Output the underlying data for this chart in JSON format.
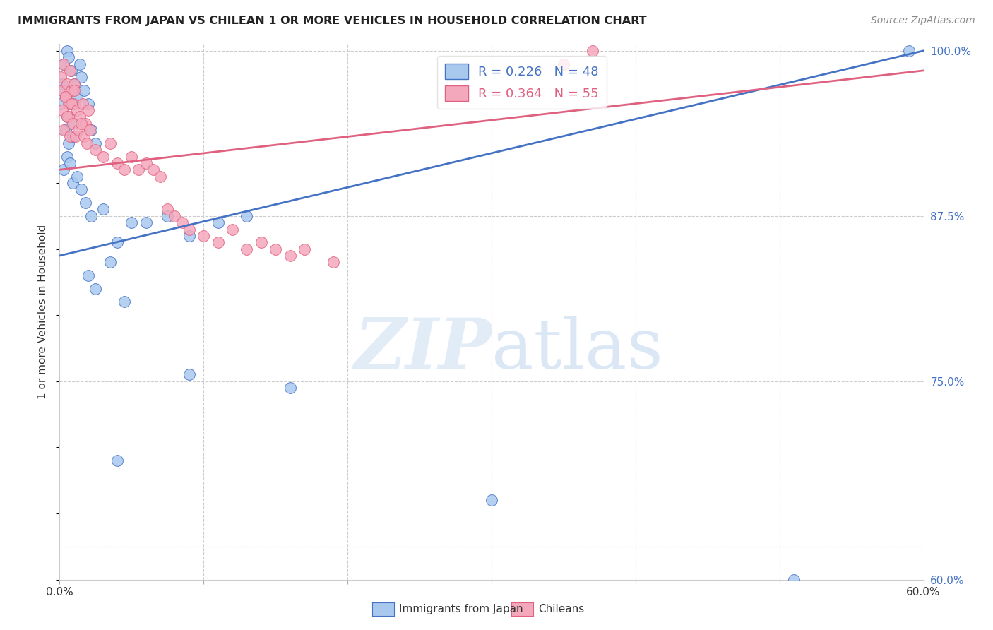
{
  "title": "IMMIGRANTS FROM JAPAN VS CHILEAN 1 OR MORE VEHICLES IN HOUSEHOLD CORRELATION CHART",
  "source": "Source: ZipAtlas.com",
  "ylabel": "1 or more Vehicles in Household",
  "legend_japan": "Immigrants from Japan",
  "legend_chile": "Chileans",
  "R_japan": 0.226,
  "N_japan": 48,
  "R_chile": 0.364,
  "N_chile": 55,
  "xlim": [
    0.0,
    0.6
  ],
  "ylim": [
    0.6,
    1.005
  ],
  "color_japan": "#A8C8EE",
  "color_chile": "#F4A8BC",
  "line_color_japan": "#4472C4",
  "line_color_chile": "#E06080",
  "background": "#FFFFFF",
  "japan_x": [
    0.001,
    0.002,
    0.003,
    0.004,
    0.005,
    0.006,
    0.007,
    0.008,
    0.009,
    0.01,
    0.003,
    0.005,
    0.006,
    0.008,
    0.01,
    0.012,
    0.014,
    0.015,
    0.017,
    0.02,
    0.022,
    0.025,
    0.003,
    0.005,
    0.007,
    0.009,
    0.012,
    0.015,
    0.018,
    0.022,
    0.03,
    0.04,
    0.05,
    0.06,
    0.075,
    0.09,
    0.11,
    0.13,
    0.02,
    0.025,
    0.035,
    0.045,
    0.09,
    0.16,
    0.59,
    0.04,
    0.3,
    0.51
  ],
  "japan_y": [
    0.96,
    0.975,
    0.97,
    0.94,
    0.95,
    0.93,
    0.96,
    0.945,
    0.935,
    0.96,
    0.99,
    1.0,
    0.995,
    0.985,
    0.975,
    0.965,
    0.99,
    0.98,
    0.97,
    0.96,
    0.94,
    0.93,
    0.91,
    0.92,
    0.915,
    0.9,
    0.905,
    0.895,
    0.885,
    0.875,
    0.88,
    0.855,
    0.87,
    0.87,
    0.875,
    0.86,
    0.87,
    0.875,
    0.83,
    0.82,
    0.84,
    0.81,
    0.755,
    0.745,
    1.0,
    0.69,
    0.66,
    0.6
  ],
  "chile_x": [
    0.001,
    0.002,
    0.003,
    0.004,
    0.005,
    0.006,
    0.007,
    0.008,
    0.009,
    0.01,
    0.002,
    0.004,
    0.006,
    0.008,
    0.01,
    0.012,
    0.014,
    0.016,
    0.018,
    0.02,
    0.003,
    0.005,
    0.007,
    0.009,
    0.011,
    0.013,
    0.015,
    0.017,
    0.019,
    0.021,
    0.025,
    0.03,
    0.035,
    0.04,
    0.045,
    0.05,
    0.055,
    0.06,
    0.065,
    0.07,
    0.075,
    0.08,
    0.085,
    0.09,
    0.1,
    0.11,
    0.12,
    0.13,
    0.14,
    0.15,
    0.16,
    0.17,
    0.19,
    0.35,
    0.37
  ],
  "chile_y": [
    0.98,
    0.97,
    0.99,
    0.965,
    0.975,
    0.96,
    0.985,
    0.97,
    0.96,
    0.975,
    0.955,
    0.965,
    0.95,
    0.96,
    0.97,
    0.955,
    0.95,
    0.96,
    0.945,
    0.955,
    0.94,
    0.95,
    0.935,
    0.945,
    0.935,
    0.94,
    0.945,
    0.935,
    0.93,
    0.94,
    0.925,
    0.92,
    0.93,
    0.915,
    0.91,
    0.92,
    0.91,
    0.915,
    0.91,
    0.905,
    0.88,
    0.875,
    0.87,
    0.865,
    0.86,
    0.855,
    0.865,
    0.85,
    0.855,
    0.85,
    0.845,
    0.85,
    0.84,
    0.99,
    1.0
  ],
  "line_japan_x0": 0.0,
  "line_japan_x1": 0.6,
  "line_japan_y0": 0.845,
  "line_japan_y1": 1.0,
  "line_chile_x0": 0.0,
  "line_chile_x1": 0.6,
  "line_chile_y0": 0.91,
  "line_chile_y1": 0.985
}
